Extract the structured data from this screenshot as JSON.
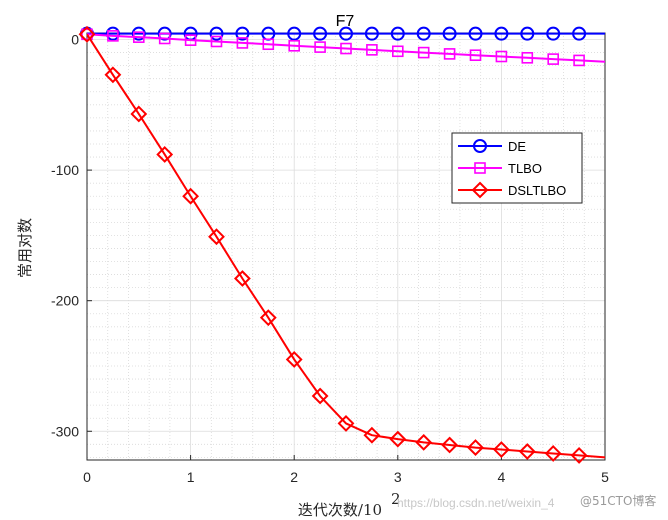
{
  "chart_data": {
    "type": "line",
    "title": "F7",
    "xlabel": "迭代次数/10",
    "xlabel_exponent": "2",
    "ylabel": "常用对数",
    "xlim": [
      0,
      5
    ],
    "ylim": [
      -322,
      5
    ],
    "x_ticks": [
      0,
      1,
      2,
      3,
      4,
      5
    ],
    "y_ticks": [
      0,
      -100,
      -200,
      -300
    ],
    "x_tick_labels": [
      "0",
      "1",
      "2",
      "3",
      "4",
      "5"
    ],
    "y_tick_labels": [
      "0",
      "-100",
      "-200",
      "-300"
    ],
    "grid": true,
    "minor_grid": true,
    "legend_position": "right",
    "x": [
      0,
      0.25,
      0.5,
      0.75,
      1.0,
      1.25,
      1.5,
      1.75,
      2.0,
      2.25,
      2.5,
      2.75,
      3.0,
      3.25,
      3.5,
      3.75,
      4.0,
      4.25,
      4.5,
      4.75,
      5.0
    ],
    "series": [
      {
        "name": "DE",
        "color": "#0000ff",
        "marker": "circle",
        "values": [
          4.5,
          4.5,
          4.5,
          4.5,
          4.5,
          4.5,
          4.5,
          4.5,
          4.5,
          4.5,
          4.5,
          4.5,
          4.5,
          4.5,
          4.5,
          4.5,
          4.5,
          4.5,
          4.5,
          4.5,
          4.5
        ]
      },
      {
        "name": "TLBO",
        "color": "#ff00ff",
        "marker": "square",
        "values": [
          4,
          2.8,
          1.8,
          0.8,
          -0.5,
          -1.5,
          -2.6,
          -3.6,
          -4.8,
          -5.8,
          -6.9,
          -7.9,
          -9.0,
          -10.0,
          -11.0,
          -12.0,
          -13.0,
          -14.0,
          -15.0,
          -16.0,
          -17.0
        ]
      },
      {
        "name": "DSLTLBO",
        "color": "#ff0000",
        "marker": "diamond",
        "values": [
          4,
          -27,
          -57,
          -88,
          -120,
          -151,
          -183,
          -213,
          -245,
          -273,
          -294,
          -303,
          -306,
          -308.5,
          -310.5,
          -312.5,
          -314,
          -315.5,
          -317,
          -318.5,
          -320
        ]
      }
    ]
  },
  "watermark": {
    "url": "https://blog.csdn.net/weixin_4",
    "brand": "@51CTO博客"
  }
}
